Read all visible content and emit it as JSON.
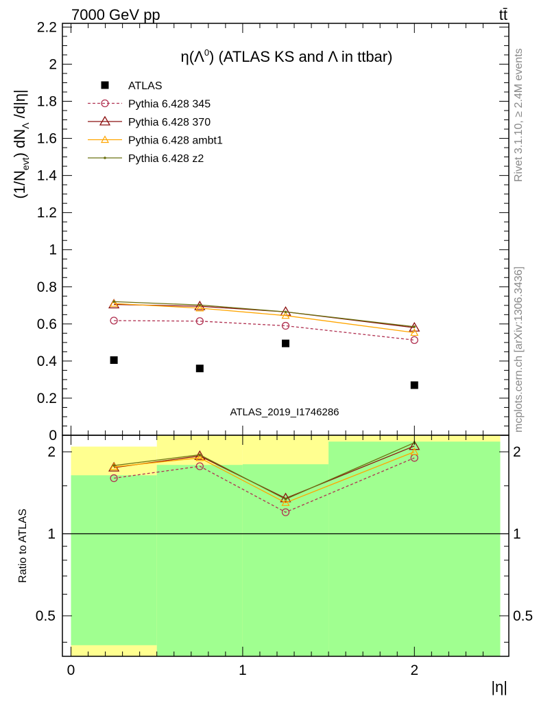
{
  "header": {
    "left": "7000 GeV pp",
    "right": "tt̄"
  },
  "side_texts": {
    "rivet": "Rivet 3.1.10, ≥ 2.4M events",
    "mcplots": "mcplots.cern.ch [arXiv:1306.3436]"
  },
  "colors": {
    "atlas": "#000000",
    "p345": "#b03050",
    "p370": "#8b1010",
    "ambt1": "#ffa500",
    "z2": "#6b7010",
    "band_green": "#a0ff90",
    "band_yellow": "#ffff90"
  },
  "chart_data": [
    {
      "type": "scatter",
      "title_parts": {
        "eta": "η(Λ",
        "sup": "0",
        "rest": ") (ATLAS KS and Λ in ttbar)"
      },
      "ylabel_parts": {
        "a": "(1/N",
        "sub1": "evt",
        "b": ") dN",
        "sub2": "Λ",
        "c": " /d|η|"
      },
      "ylim": [
        0,
        2.22
      ],
      "yticks": [
        0,
        0.2,
        0.4,
        0.6,
        0.8,
        1,
        1.2,
        1.4,
        1.6,
        1.8,
        2,
        2.2
      ],
      "ytick_labels": [
        "0",
        "0.2",
        "0.4",
        "0.6",
        "0.8",
        "1",
        "1.2",
        "1.4",
        "1.6",
        "1.8",
        "2",
        "2.2"
      ],
      "xlim": [
        -0.05,
        2.55
      ],
      "watermark": "ATLAS_2019_I1746286",
      "series": [
        {
          "name": "ATLAS",
          "x": [
            0.25,
            0.75,
            1.25,
            2.0
          ],
          "y": [
            0.405,
            0.36,
            0.495,
            0.27
          ],
          "style": "square"
        },
        {
          "name": "Pythia 6.428 345",
          "x": [
            0.25,
            0.75,
            1.25,
            2.0
          ],
          "y": [
            0.618,
            0.615,
            0.59,
            0.513
          ],
          "style": "circle-dashed"
        },
        {
          "name": "Pythia 6.428 370",
          "x": [
            0.25,
            0.75,
            1.25,
            2.0
          ],
          "y": [
            0.705,
            0.695,
            0.665,
            0.58
          ],
          "style": "triangle"
        },
        {
          "name": "Pythia 6.428 ambt1",
          "x": [
            0.25,
            0.75,
            1.25,
            2.0
          ],
          "y": [
            0.71,
            0.685,
            0.645,
            0.553
          ],
          "style": "triangle-small"
        },
        {
          "name": "Pythia 6.428 z2",
          "x": [
            0.25,
            0.75,
            1.25,
            2.0
          ],
          "y": [
            0.72,
            0.702,
            0.665,
            0.585
          ],
          "style": "dot"
        }
      ]
    },
    {
      "type": "line",
      "ylabel": "Ratio to ATLAS",
      "ylim": [
        0.355,
        2.3
      ],
      "yscale": "log",
      "yticks": [
        0.5,
        1,
        2
      ],
      "ytick_labels": [
        "0.5",
        "1",
        "2"
      ],
      "xlim": [
        -0.05,
        2.55
      ],
      "xticks": [
        0,
        1,
        2
      ],
      "xtick_labels": [
        "0",
        "1",
        "2"
      ],
      "xlabel": "|η|",
      "bands": [
        {
          "x0": 0.0,
          "x1": 0.5,
          "green": [
            0.39,
            1.64
          ],
          "yellow": [
            0.355,
            2.09
          ]
        },
        {
          "x0": 0.5,
          "x1": 1.0,
          "green": [
            0.355,
            1.79
          ],
          "yellow": [
            0.355,
            2.3
          ]
        },
        {
          "x0": 1.0,
          "x1": 1.5,
          "green": [
            0.355,
            1.8
          ],
          "yellow": [
            0.355,
            2.3
          ]
        },
        {
          "x0": 1.5,
          "x1": 2.5,
          "green": [
            0.355,
            2.18
          ],
          "yellow": [
            0.355,
            2.3
          ]
        }
      ],
      "series": [
        {
          "name": "Pythia 6.428 345",
          "x": [
            0.25,
            0.75,
            1.25,
            2.0
          ],
          "y": [
            1.6,
            1.77,
            1.2,
            1.9
          ]
        },
        {
          "name": "Pythia 6.428 370",
          "x": [
            0.25,
            0.75,
            1.25,
            2.0
          ],
          "y": [
            1.75,
            1.93,
            1.35,
            2.1
          ]
        },
        {
          "name": "Pythia 6.428 ambt1",
          "x": [
            0.25,
            0.75,
            1.25,
            2.0
          ],
          "y": [
            1.76,
            1.9,
            1.3,
            2.0
          ]
        },
        {
          "name": "Pythia 6.428 z2",
          "x": [
            0.25,
            0.75,
            1.25,
            2.0
          ],
          "y": [
            1.78,
            1.95,
            1.34,
            2.16
          ]
        }
      ]
    }
  ]
}
